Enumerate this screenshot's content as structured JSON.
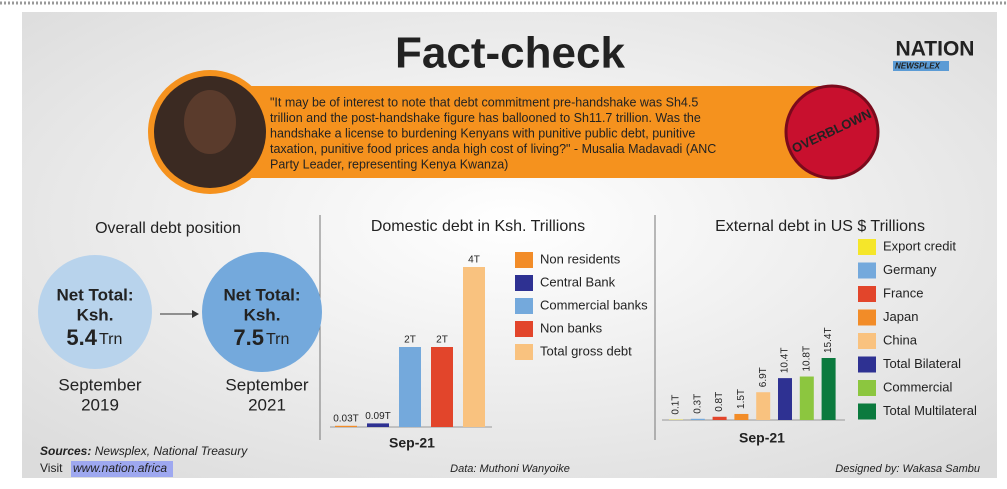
{
  "header": {
    "title": "Fact-check",
    "logo": "NATION",
    "logo_sub": "NEWSPLEX"
  },
  "quote": {
    "lines": [
      "\"It may be of interest to note that debt commitment pre-handshake was Sh4.5",
      "trillion and the post-handshake figure has ballooned to Sh11.7 trillion. Was the",
      "handshake a license to burdening Kenyans with punitive public debt, punitive",
      "taxation, punitive food prices anda high cost of living?\" - Musalia Madavadi (ANC",
      "Party Leader, representing Kenya Kwanza)"
    ]
  },
  "stamp": "OVERBLOWN",
  "debt_position": {
    "title": "Overall debt position",
    "items": [
      {
        "label": "Net Total:",
        "currency": "Ksh.",
        "amount": 5.4,
        "unit": "Trn",
        "month": "September",
        "year": "2019"
      },
      {
        "label": "Net Total:",
        "currency": "Ksh.",
        "amount": 7.5,
        "unit": "Trn",
        "month": "September",
        "year": "2021"
      }
    ]
  },
  "chart_data": [
    {
      "type": "bar",
      "title": "Domestic debt in Ksh. Trillions",
      "categories": [
        "Sep-21"
      ],
      "series": [
        {
          "name": "Non residents",
          "color": "#f28c28",
          "values": [
            0.03
          ],
          "value_labels": [
            "0.03T"
          ]
        },
        {
          "name": "Central Bank",
          "color": "#2e3192",
          "values": [
            0.09
          ],
          "value_labels": [
            "0.09T"
          ]
        },
        {
          "name": "Commercial banks",
          "color": "#74a9dc",
          "values": [
            2
          ],
          "value_labels": [
            "2T"
          ]
        },
        {
          "name": "Non banks",
          "color": "#e2452b",
          "values": [
            2
          ],
          "value_labels": [
            "2T"
          ]
        },
        {
          "name": "Total gross debt",
          "color": "#f9c27f",
          "values": [
            4
          ],
          "value_labels": [
            "4T"
          ]
        }
      ]
    },
    {
      "type": "bar",
      "title": "External debt in US $ Trillions",
      "categories": [
        "Sep-21"
      ],
      "series": [
        {
          "name": "Export credit",
          "color": "#f5e62a",
          "values": [
            0.1
          ],
          "value_labels": [
            "0.1T"
          ]
        },
        {
          "name": "Germany",
          "color": "#74a9dc",
          "values": [
            0.3
          ],
          "value_labels": [
            "0.3T"
          ]
        },
        {
          "name": "France",
          "color": "#e2452b",
          "values": [
            0.8
          ],
          "value_labels": [
            "0.8T"
          ]
        },
        {
          "name": "Japan",
          "color": "#f28c28",
          "values": [
            1.5
          ],
          "value_labels": [
            "1.5T"
          ]
        },
        {
          "name": "China",
          "color": "#f9c27f",
          "values": [
            6.9
          ],
          "value_labels": [
            "6.9T"
          ]
        },
        {
          "name": "Total Bilateral",
          "color": "#2e3192",
          "values": [
            10.4
          ],
          "value_labels": [
            "10.4T"
          ]
        },
        {
          "name": "Commercial",
          "color": "#8cc63f",
          "values": [
            10.8
          ],
          "value_labels": [
            "10.8T"
          ]
        },
        {
          "name": "Total Multilateral",
          "color": "#0b7a3e",
          "values": [
            15.4
          ],
          "value_labels": [
            "15.4T"
          ]
        }
      ]
    }
  ],
  "footer": {
    "sources_label": "Sources:",
    "sources": "Newsplex, National Treasury",
    "visit_label": "Visit",
    "link": "www.nation.africa",
    "data_credit": "Data: Muthoni Wanyoike",
    "designer": "Designed by: Wakasa Sambu"
  }
}
